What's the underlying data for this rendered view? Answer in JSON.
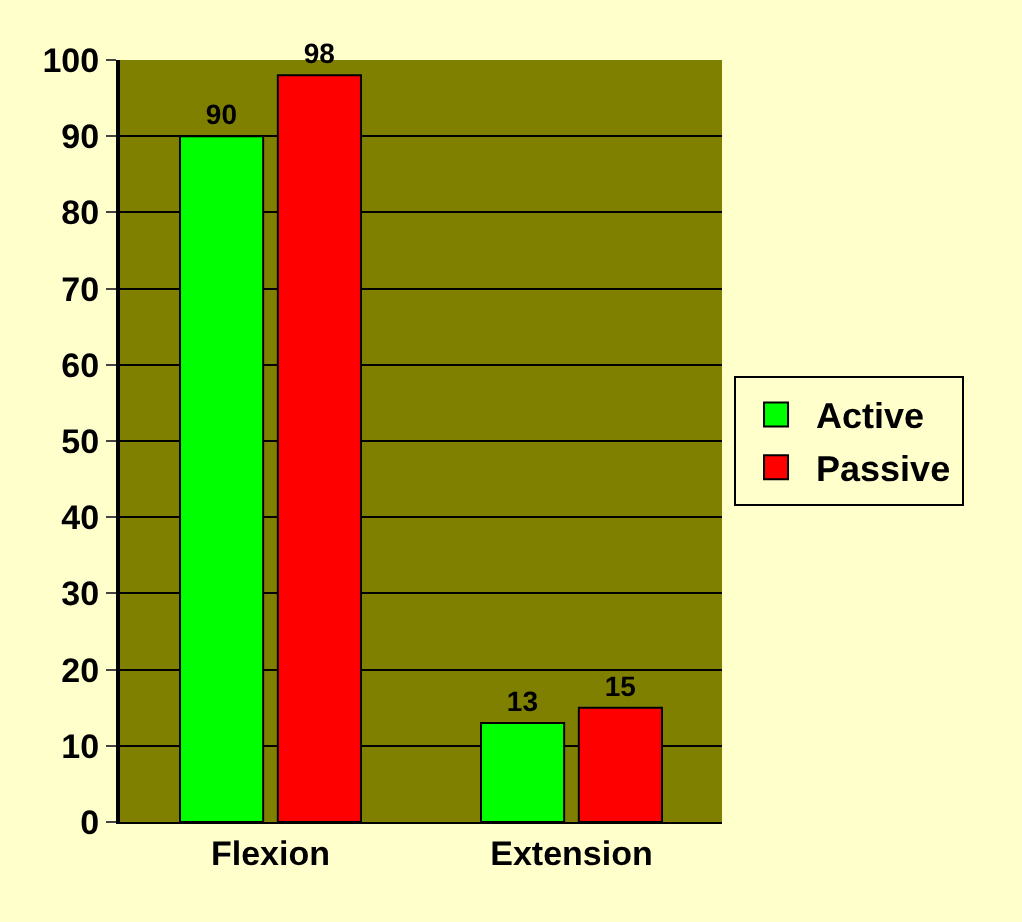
{
  "chart_data": {
    "type": "bar",
    "categories": [
      "Flexion",
      "Extension"
    ],
    "series": [
      {
        "name": "Active",
        "color": "#00ff00",
        "values": [
          90,
          13
        ]
      },
      {
        "name": "Passive",
        "color": "#ff0000",
        "values": [
          98,
          15
        ]
      }
    ],
    "ylim": [
      0,
      100
    ],
    "yticks": [
      0,
      10,
      20,
      30,
      40,
      50,
      60,
      70,
      80,
      90,
      100
    ],
    "grid": "y",
    "legend": "right",
    "data_labels": true
  }
}
